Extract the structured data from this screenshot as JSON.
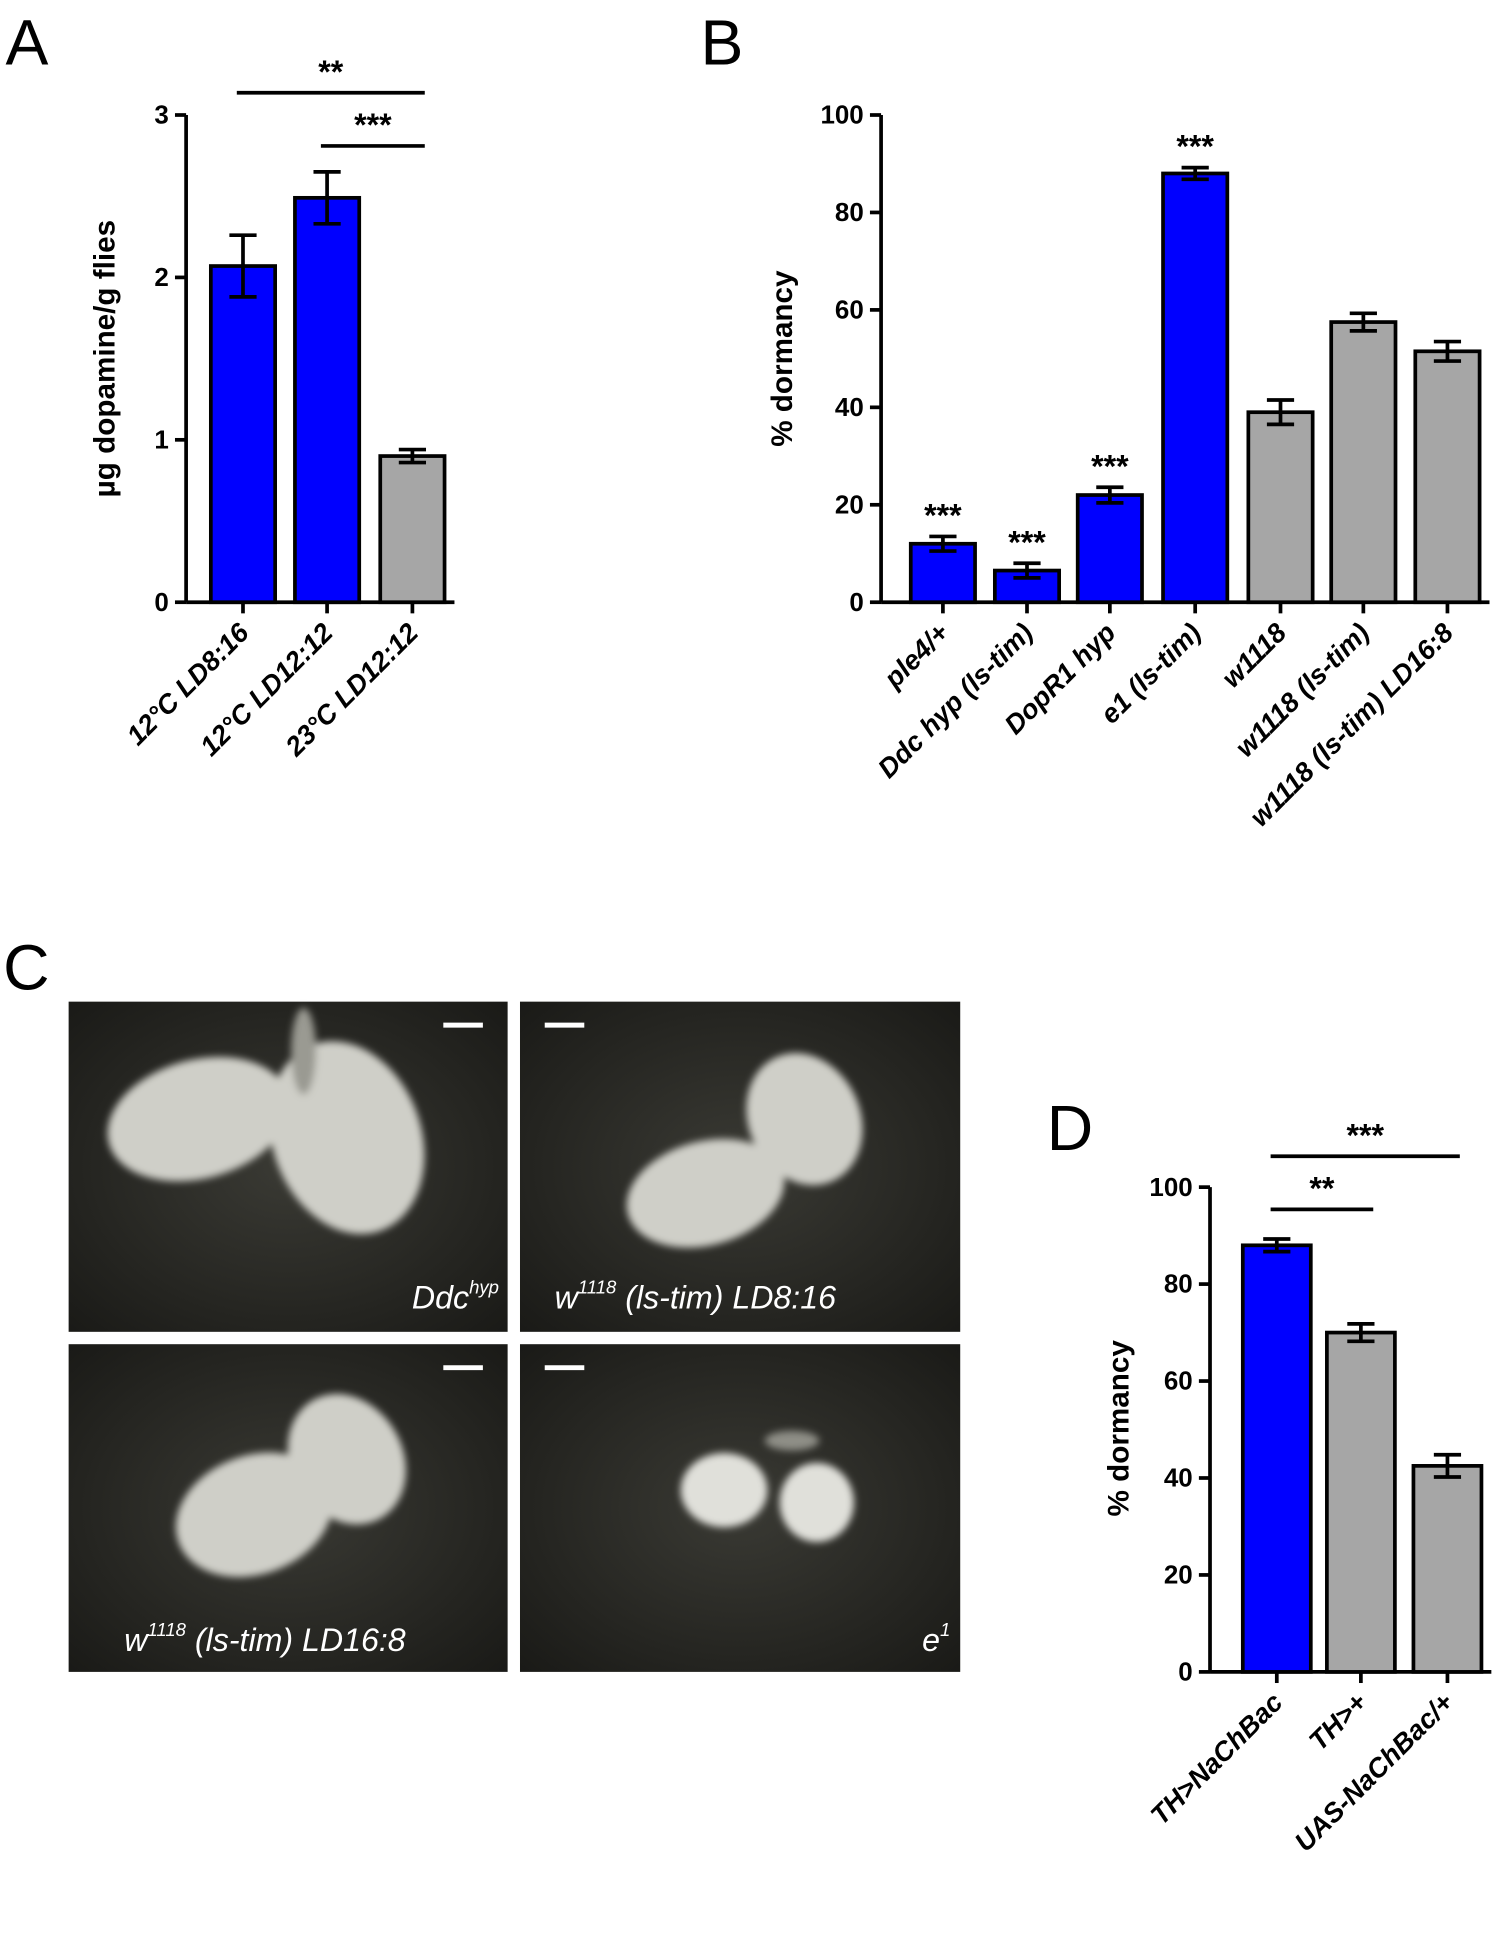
{
  "panel_labels": [
    "A",
    "B",
    "C",
    "D"
  ],
  "chart_data": [
    {
      "type": "bar",
      "ylabel": "µg dopamine/g flies",
      "categories": [
        "12°C LD8:16",
        "12°C LD12:12",
        "23°C LD12:12"
      ],
      "values": [
        2.07,
        2.49,
        0.9
      ],
      "errors": [
        0.19,
        0.16,
        0.04
      ],
      "colors": [
        "#0000ff",
        "#0000ff",
        "#a6a6a6"
      ],
      "ylim": [
        0,
        3
      ],
      "yticks": [
        0,
        1,
        2,
        3
      ],
      "annotations": [
        {
          "text": "**",
          "between": [
            "12°C LD8:16",
            "23°C LD12:12"
          ]
        },
        {
          "text": "***",
          "between": [
            "12°C LD12:12",
            "23°C LD12:12"
          ]
        }
      ]
    },
    {
      "type": "bar",
      "ylabel": "% dormancy",
      "categories": [
        "ple4/+",
        "Ddc hyp (ls-tim)",
        "DopR1 hyp",
        "e1 (ls-tim)",
        "w1118",
        "w1118 (ls-tim)",
        "w1118 (ls-tim) LD16:8"
      ],
      "values": [
        12,
        6.5,
        22,
        88,
        39,
        57.5,
        51.5
      ],
      "errors": [
        1.5,
        1.5,
        1.6,
        1.2,
        2.5,
        1.8,
        2
      ],
      "colors": [
        "#0000ff",
        "#0000ff",
        "#0000ff",
        "#0000ff",
        "#a6a6a6",
        "#a6a6a6",
        "#a6a6a6"
      ],
      "ylim": [
        0,
        100
      ],
      "yticks": [
        0,
        20,
        40,
        60,
        80,
        100
      ],
      "annotations": [
        {
          "text": "***",
          "category": "ple4/+"
        },
        {
          "text": "***",
          "category": "Ddc hyp (ls-tim)"
        },
        {
          "text": "***",
          "category": "DopR1 hyp"
        },
        {
          "text": "***",
          "category": "e1 (ls-tim)"
        }
      ]
    },
    {
      "type": "bar",
      "ylabel": "% dormancy",
      "categories": [
        "TH>NaChBac",
        "TH>+",
        "UAS-NaChBac/+"
      ],
      "values": [
        88,
        70,
        42.5
      ],
      "errors": [
        1.3,
        1.8,
        2.3
      ],
      "colors": [
        "#0000ff",
        "#a6a6a6",
        "#a6a6a6"
      ],
      "ylim": [
        0,
        100
      ],
      "yticks": [
        0,
        20,
        40,
        60,
        80,
        100
      ],
      "annotations": [
        {
          "text": "**",
          "between": [
            "TH>NaChBac",
            "TH>+"
          ]
        },
        {
          "text": "***",
          "between": [
            "TH>NaChBac",
            "UAS-NaChBac/+"
          ]
        }
      ]
    }
  ],
  "images": [
    {
      "base": "Ddc",
      "sup": "hyp",
      "after": ""
    },
    {
      "base": "w",
      "sup": "1118",
      "after": " (ls-tim) LD8:16"
    },
    {
      "base": "w",
      "sup": "1118",
      "after": " (ls-tim) LD16:8"
    },
    {
      "base": "e",
      "sup": "1",
      "after": ""
    }
  ]
}
